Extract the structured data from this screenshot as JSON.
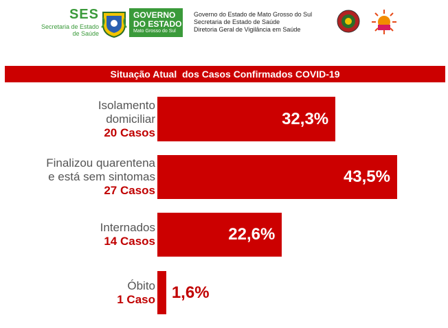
{
  "header": {
    "ses_title": "SES",
    "ses_subtitle_1": "Secretaria de Estado",
    "ses_subtitle_2": "de Saúde",
    "gov_line1": "GOVERNO",
    "gov_line2": "DO ESTADO",
    "gov_line3": "Mato Grosso do Sul",
    "org_line1": "Governo do Estado de Mato Grosso do Sul",
    "org_line2": "Secretaria de Estado de Saúde",
    "org_line3": "Diretoria Geral de Vigilância em Saúde"
  },
  "colors": {
    "bar": "#cc0000",
    "count_text": "#c00000",
    "brand_green": "#3a9a3a"
  },
  "chart_data": {
    "type": "bar",
    "orientation": "horizontal",
    "title": "Situação Atual  dos Casos Confirmados COVID-19",
    "categories": [
      {
        "label_lines": [
          "Isolamento",
          "domiciliar"
        ],
        "count_label": "20 Casos"
      },
      {
        "label_lines": [
          "Finalizou quarentena",
          "e está sem sintomas"
        ],
        "count_label": "27 Casos"
      },
      {
        "label_lines": [
          "Internados"
        ],
        "count_label": "14 Casos"
      },
      {
        "label_lines": [
          "Óbito"
        ],
        "count_label": "1 Caso"
      }
    ],
    "values": [
      32.3,
      43.5,
      22.6,
      1.6
    ],
    "value_labels": [
      "32,3%",
      "43,5%",
      "22,6%",
      "1,6%"
    ],
    "counts": [
      20,
      27,
      14,
      1
    ],
    "xlim": [
      0,
      43.5
    ],
    "grid": false,
    "legend": "none"
  }
}
